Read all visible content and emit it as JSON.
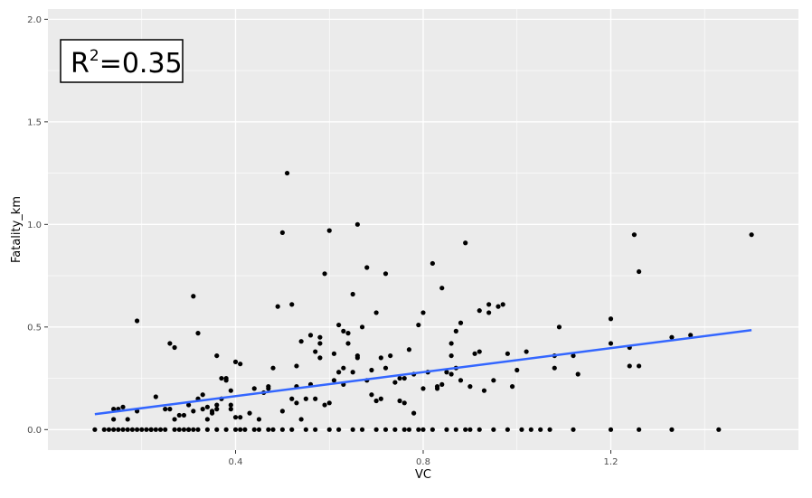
{
  "chart_data": {
    "type": "scatter",
    "xlabel": "VC",
    "ylabel": "Fatality_km",
    "xlim": [
      0.0,
      1.6
    ],
    "ylim": [
      -0.1,
      2.05
    ],
    "x_ticks": [
      0.4,
      0.8,
      1.2
    ],
    "x_tick_labels": [
      "0.4",
      "0.8",
      "1.2"
    ],
    "y_ticks": [
      0.0,
      0.5,
      1.0,
      1.5,
      2.0
    ],
    "y_tick_labels": [
      "0.0",
      "0.5",
      "1.0",
      "1.5",
      "2.0"
    ],
    "grid": true,
    "annotation": {
      "base": "R",
      "superscript": "2",
      "rest": "=0.35"
    },
    "colors": {
      "panel": "#ebebeb",
      "grid": "#ffffff",
      "points": "#000000",
      "fit_line": "#3366ff"
    },
    "fit_line": {
      "x": [
        0.1,
        1.5
      ],
      "y": [
        0.075,
        0.485
      ]
    },
    "points": {
      "x": [
        0.1,
        0.12,
        0.13,
        0.14,
        0.15,
        0.16,
        0.17,
        0.18,
        0.19,
        0.2,
        0.21,
        0.22,
        0.23,
        0.24,
        0.25,
        0.27,
        0.28,
        0.29,
        0.3,
        0.31,
        0.32,
        0.34,
        0.36,
        0.38,
        0.4,
        0.41,
        0.42,
        0.45,
        0.47,
        0.48,
        0.5,
        0.52,
        0.55,
        0.57,
        0.6,
        0.62,
        0.65,
        0.67,
        0.7,
        0.72,
        0.74,
        0.76,
        0.77,
        0.79,
        0.8,
        0.82,
        0.85,
        0.87,
        0.89,
        0.9,
        0.92,
        0.95,
        0.98,
        1.01,
        1.03,
        1.05,
        1.07,
        1.12,
        1.2,
        1.26,
        1.33,
        1.43,
        0.14,
        0.17,
        0.15,
        0.16,
        0.14,
        0.19,
        0.23,
        0.25,
        0.27,
        0.28,
        0.3,
        0.31,
        0.32,
        0.33,
        0.34,
        0.35,
        0.36,
        0.37,
        0.38,
        0.39,
        0.4,
        0.41,
        0.43,
        0.45,
        0.46,
        0.47,
        0.48,
        0.5,
        0.52,
        0.53,
        0.54,
        0.55,
        0.56,
        0.57,
        0.58,
        0.59,
        0.6,
        0.61,
        0.62,
        0.63,
        0.64,
        0.65,
        0.66,
        0.67,
        0.68,
        0.69,
        0.7,
        0.72,
        0.73,
        0.74,
        0.75,
        0.76,
        0.78,
        0.8,
        0.81,
        0.83,
        0.85,
        0.86,
        0.87,
        0.88,
        0.9,
        0.92,
        0.93,
        0.95,
        0.97,
        0.99,
        1.02,
        1.08,
        1.12,
        1.2,
        1.24,
        1.26,
        1.33,
        1.37,
        0.19,
        0.26,
        0.27,
        0.31,
        0.32,
        0.36,
        0.38,
        0.4,
        0.5,
        0.51,
        0.52,
        0.53,
        0.56,
        0.58,
        0.59,
        0.6,
        0.62,
        0.64,
        0.66,
        0.68,
        0.7,
        0.72,
        0.75,
        0.77,
        0.8,
        0.82,
        0.84,
        0.86,
        0.88,
        0.89,
        0.92,
        0.94,
        0.96,
        0.98,
        1.09,
        1.13,
        1.2,
        1.25,
        1.26,
        1.5,
        0.22,
        0.26,
        0.29,
        0.33,
        0.35,
        0.37,
        0.39,
        0.41,
        0.44,
        0.49,
        0.54,
        0.57,
        0.61,
        0.63,
        0.65,
        0.69,
        0.71,
        0.78,
        0.83,
        0.86,
        0.91,
        0.94,
        1.0,
        1.08,
        1.24,
        0.3,
        0.34,
        0.36,
        0.39,
        0.44,
        0.47,
        0.53,
        0.58,
        0.63,
        0.66,
        0.71,
        0.76,
        0.79,
        0.84,
        0.87
      ],
      "y": [
        0,
        0,
        0,
        0,
        0,
        0,
        0,
        0,
        0,
        0,
        0,
        0,
        0,
        0,
        0,
        0,
        0,
        0,
        0,
        0,
        0,
        0,
        0,
        0,
        0,
        0,
        0,
        0,
        0,
        0,
        0,
        0,
        0,
        0,
        0,
        0,
        0,
        0,
        0,
        0,
        0,
        0,
        0,
        0,
        0,
        0,
        0,
        0,
        0,
        0,
        0,
        0,
        0,
        0,
        0,
        0,
        0,
        0,
        0,
        0,
        0,
        0,
        0.05,
        0.05,
        0.1,
        0.11,
        0.1,
        0.09,
        0.16,
        0.1,
        0.05,
        0.07,
        0.12,
        0.09,
        0.15,
        0.1,
        0.11,
        0.09,
        0.12,
        0.15,
        0.24,
        0.1,
        0.06,
        0.06,
        0.08,
        0.05,
        0.18,
        0.21,
        0.3,
        0.09,
        0.15,
        0.21,
        0.43,
        0.15,
        0.22,
        0.15,
        0.35,
        0.12,
        0.13,
        0.37,
        0.28,
        0.22,
        0.42,
        0.28,
        0.36,
        0.5,
        0.24,
        0.29,
        0.14,
        0.3,
        0.36,
        0.23,
        0.14,
        0.25,
        0.27,
        0.2,
        0.28,
        0.21,
        0.28,
        0.42,
        0.3,
        0.24,
        0.21,
        0.38,
        0.19,
        0.24,
        0.61,
        0.21,
        0.38,
        0.3,
        0.36,
        0.42,
        0.4,
        0.31,
        0.45,
        0.46,
        0.53,
        0.42,
        0.4,
        0.65,
        0.47,
        0.36,
        0.25,
        0.33,
        0.96,
        1.25,
        0.61,
        0.31,
        0.46,
        0.45,
        0.76,
        0.97,
        0.51,
        0.47,
        1.0,
        0.79,
        0.57,
        0.76,
        0.25,
        0.39,
        0.57,
        0.81,
        0.69,
        0.36,
        0.52,
        0.91,
        0.58,
        0.61,
        0.6,
        0.37,
        0.5,
        0.27,
        0.54,
        0.95,
        0.77,
        0.95,
        0.0,
        0.1,
        0.07,
        0.17,
        0.08,
        0.25,
        0.12,
        0.32,
        0.2,
        0.6,
        0.05,
        0.38,
        0.24,
        0.48,
        0.66,
        0.17,
        0.35,
        0.08,
        0.2,
        0.27,
        0.37,
        0.57,
        0.29,
        0.36,
        0.31,
        0.0,
        0.05,
        0.1,
        0.19,
        0.0,
        0.2,
        0.13,
        0.42,
        0.3,
        0.35,
        0.15,
        0.13,
        0.51,
        0.22,
        0.48
      ]
    }
  }
}
